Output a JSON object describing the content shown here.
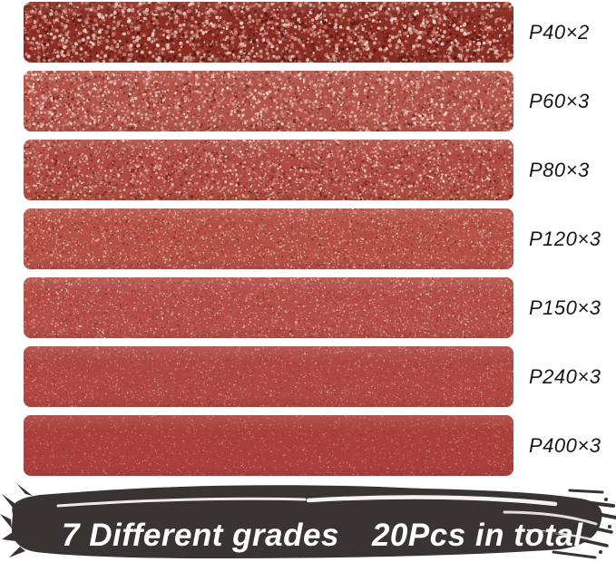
{
  "page": {
    "background": "#ffffff",
    "label_color": "#161616"
  },
  "strips": [
    {
      "label": "P40×2",
      "grade": "P40",
      "quantity": 2,
      "texture": {
        "base": "#8b2e24",
        "light": "#f5ddd0",
        "mid": "#d0796c",
        "dark": "#55170e",
        "dots": 2800,
        "rmin": 0.8,
        "rmax": 2.2,
        "pLight": 0.42,
        "pMid": 0.3,
        "pDark": 0.28
      }
    },
    {
      "label": "P60×3",
      "grade": "P60",
      "quantity": 3,
      "texture": {
        "base": "#b25449",
        "light": "#f7dfd3",
        "mid": "#d8938a",
        "dark": "#7a281f",
        "dots": 3400,
        "rmin": 0.6,
        "rmax": 1.7,
        "pLight": 0.4,
        "pMid": 0.3,
        "pDark": 0.3
      }
    },
    {
      "label": "P80×3",
      "grade": "P80",
      "quantity": 3,
      "texture": {
        "base": "#ae4c43",
        "light": "#f3d3c6",
        "mid": "#d18c80",
        "dark": "#74241c",
        "dots": 3600,
        "rmin": 0.6,
        "rmax": 1.5,
        "pLight": 0.4,
        "pMid": 0.3,
        "pDark": 0.3
      }
    },
    {
      "label": "P120×3",
      "grade": "P120",
      "quantity": 3,
      "texture": {
        "base": "#b55046",
        "light": "#eec3b6",
        "mid": "#d2887c",
        "dark": "#842f27",
        "dots": 4000,
        "rmin": 0.5,
        "rmax": 1.15,
        "pLight": 0.4,
        "pMid": 0.3,
        "pDark": 0.3
      }
    },
    {
      "label": "P150×3",
      "grade": "P150",
      "quantity": 3,
      "texture": {
        "base": "#b44e47",
        "light": "#eabdb1",
        "mid": "#cf8177",
        "dark": "#86332b",
        "dots": 4200,
        "rmin": 0.45,
        "rmax": 1.05,
        "pLight": 0.4,
        "pMid": 0.3,
        "pDark": 0.3
      }
    },
    {
      "label": "P240×3",
      "grade": "P240",
      "quantity": 3,
      "texture": {
        "base": "#af4742",
        "light": "#e0a89e",
        "mid": "#c77e75",
        "dark": "#8b332d",
        "dots": 3400,
        "rmin": 0.4,
        "rmax": 0.9,
        "pLight": 0.42,
        "pMid": 0.3,
        "pDark": 0.28
      }
    },
    {
      "label": "P400×3",
      "grade": "P400",
      "quantity": 3,
      "texture": {
        "base": "#aa403d",
        "light": "#d89c93",
        "mid": "#c27a72",
        "dark": "#8d322e",
        "dots": 2600,
        "rmin": 0.4,
        "rmax": 0.8,
        "pLight": 0.44,
        "pMid": 0.3,
        "pDark": 0.26
      }
    }
  ],
  "banner": {
    "left_text": "7 Different grades",
    "right_text": "20Pcs in total",
    "brush_color": "#393332",
    "text_color": "#ffffff"
  }
}
